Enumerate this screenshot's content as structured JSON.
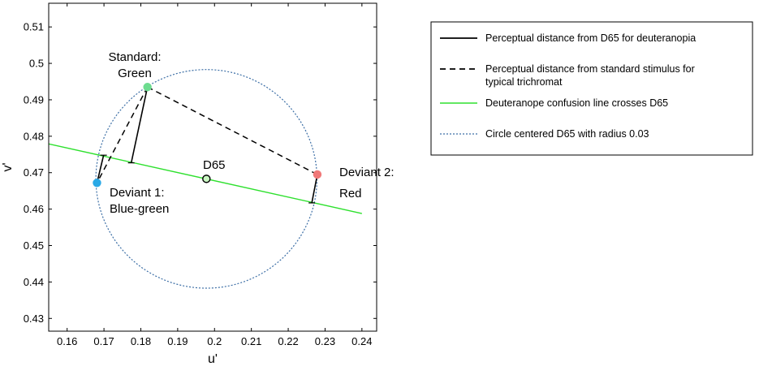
{
  "chart_data": {
    "type": "scatter",
    "title": "",
    "xlabel": "u'",
    "ylabel": "v'",
    "xlim": [
      0.155,
      0.244
    ],
    "ylim": [
      0.4265,
      0.5165
    ],
    "xticks": [
      0.16,
      0.17,
      0.18,
      0.19,
      0.2,
      0.21,
      0.22,
      0.23,
      0.24
    ],
    "yticks": [
      0.43,
      0.44,
      0.45,
      0.46,
      0.47,
      0.48,
      0.49,
      0.5,
      0.51
    ],
    "grid": false,
    "legend_position": "right, outside plot",
    "points": [
      {
        "id": "standard",
        "label_lines": [
          "Standard:",
          "Green"
        ],
        "u": 0.1818,
        "v": 0.4935,
        "color": "#6ddc8f"
      },
      {
        "id": "deviant1",
        "label_lines": [
          "Deviant 1:",
          "Blue-green"
        ],
        "u": 0.1681,
        "v": 0.4672,
        "color": "#2aa9e6"
      },
      {
        "id": "deviant2",
        "label_lines": [
          "Deviant 2:",
          "Red"
        ],
        "u": 0.2279,
        "v": 0.4695,
        "color": "#f07878"
      },
      {
        "id": "d65",
        "label_lines": [
          "D65"
        ],
        "u": 0.1978,
        "v": 0.4683,
        "color": "#c9f7c2"
      }
    ],
    "confusion_line": {
      "u": [
        0.155,
        0.24
      ],
      "v": [
        0.4779,
        0.4588
      ],
      "color": "#2ee02e"
    },
    "circle": {
      "center_u": 0.1978,
      "center_v": 0.4683,
      "radius": 0.03,
      "color": "#3d6fa6"
    },
    "solid_segments": [
      {
        "from": [
          0.1818,
          0.4935
        ],
        "to": [
          0.1774,
          0.4727
        ]
      },
      {
        "from": [
          0.1681,
          0.4672
        ],
        "to": [
          0.1699,
          0.4748
        ]
      },
      {
        "from": [
          0.2279,
          0.4695
        ],
        "to": [
          0.2264,
          0.4617
        ]
      }
    ],
    "dashed_segments": [
      {
        "from": [
          0.1818,
          0.4935
        ],
        "to": [
          0.1681,
          0.4672
        ]
      },
      {
        "from": [
          0.1818,
          0.4935
        ],
        "to": [
          0.2279,
          0.4695
        ]
      }
    ],
    "legend": [
      {
        "style": "solid",
        "color": "#000000",
        "lines": [
          "Perceptual distance from D65 for deuteranopia"
        ]
      },
      {
        "style": "dashed",
        "color": "#000000",
        "lines": [
          "Perceptual distance from standard stimulus for",
          "typical trichromat"
        ]
      },
      {
        "style": "solid",
        "color": "#2ee02e",
        "lines": [
          "Deuteranope confusion line crosses D65"
        ]
      },
      {
        "style": "dotted",
        "color": "#3d6fa6",
        "lines": [
          "Circle centered D65 with radius 0.03"
        ]
      }
    ]
  }
}
